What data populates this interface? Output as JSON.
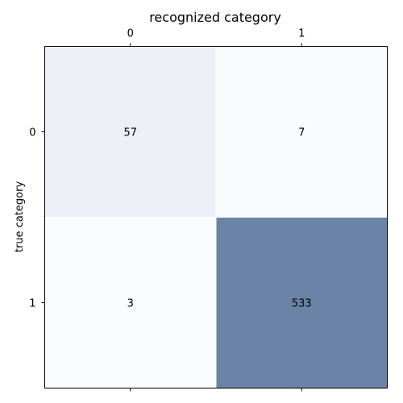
{
  "chart_data": {
    "type": "heatmap",
    "title": "recognized category",
    "xlabel": "recognized category",
    "ylabel": "true category",
    "x_categories": [
      "0",
      "1"
    ],
    "y_categories": [
      "0",
      "1"
    ],
    "values": [
      [
        57,
        7
      ],
      [
        3,
        533
      ]
    ],
    "colormap": {
      "low": "#f7fbff",
      "high": "#08306b",
      "alpha": 0.6
    },
    "xaxis_position": "top"
  }
}
